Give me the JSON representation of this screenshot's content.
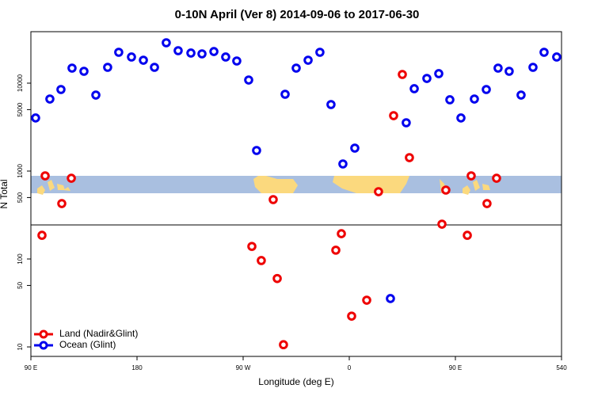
{
  "chart_data": {
    "type": "scatter",
    "title": "0-10N April (Ver 8)   2014-09-06 to 2017-06-30",
    "xlabel": "Longitude (deg E)",
    "ylabel": "N Total",
    "xlim": [
      90,
      540
    ],
    "xticks": [
      {
        "value": 90,
        "label": "90 E"
      },
      180,
      {
        "value": 270,
        "label": "90 W"
      },
      {
        "value": 360,
        "label": "0"
      },
      {
        "value": 450,
        "label": "90 E"
      },
      540
    ],
    "ylim": [
      7.8,
      38500
    ],
    "log_y": true,
    "yticks": [
      10,
      50,
      100,
      500,
      1000,
      5000,
      10000
    ],
    "legend": "bottom-left",
    "series": [
      {
        "name": "Land (Nadir&Glint)",
        "color": "#ee0000",
        "x": [
          99.4,
          102.1,
          116.2,
          124.3,
          277.4,
          285.4,
          295.5,
          298.9,
          304.2,
          348.6,
          353.3,
          362.0,
          374.8,
          384.8,
          397.6,
          405.0,
          411.0,
          438.6,
          441.9,
          460.1,
          463.4,
          476.8,
          484.9
        ],
        "values": [
          186,
          883,
          427,
          829,
          139,
          96,
          474,
          60,
          10.6,
          126,
          194,
          22.4,
          34,
          583,
          4270,
          12560,
          1422,
          249,
          608,
          186,
          883,
          427,
          829
        ]
      },
      {
        "name": "Ocean (Glint)",
        "color": "#0000ee",
        "x": [
          94.0,
          106.1,
          115.5,
          124.9,
          135.0,
          145.1,
          155.1,
          164.5,
          175.3,
          185.4,
          194.8,
          204.8,
          214.9,
          225.7,
          235.1,
          245.2,
          255.2,
          264.6,
          274.7,
          281.4,
          305.6,
          315.0,
          325.1,
          335.1,
          344.5,
          354.6,
          364.7,
          394.9,
          408.3,
          415.1,
          425.8,
          435.9,
          445.3,
          454.7,
          466.1,
          476.2,
          486.2,
          495.6,
          505.7,
          515.8,
          525.2,
          535.9
        ],
        "values": [
          4020,
          6600,
          8470,
          14830,
          13650,
          7320,
          15140,
          22450,
          19830,
          18240,
          15140,
          28800,
          23400,
          22000,
          21540,
          22900,
          19830,
          17870,
          10860,
          1715,
          7480,
          14830,
          18240,
          22450,
          5710,
          1205,
          1825,
          35.5,
          3545,
          8650,
          11320,
          12830,
          6470,
          4020,
          6600,
          8470,
          14830,
          13650,
          7320,
          15140,
          22450,
          19830
        ]
      }
    ]
  }
}
